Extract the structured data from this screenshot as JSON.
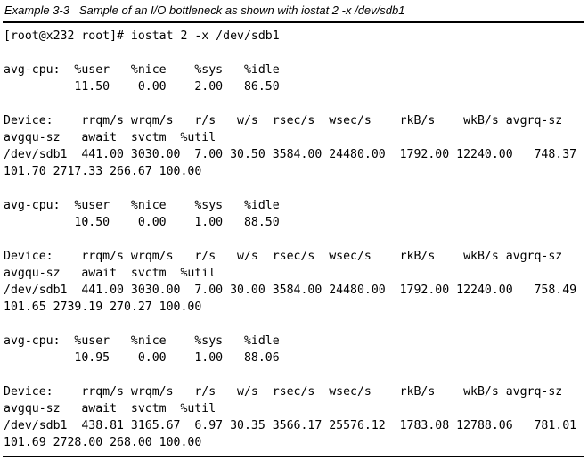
{
  "caption": "Example 3-3   Sample of an I/O bottleneck as shown with iostat 2 -x /dev/sdb1",
  "terminal": {
    "lines": [
      "[root@x232 root]# iostat 2 -x /dev/sdb1",
      "",
      "avg-cpu:  %user   %nice    %sys   %idle",
      "          11.50    0.00    2.00   86.50",
      "",
      "Device:    rrqm/s wrqm/s   r/s   w/s  rsec/s  wsec/s    rkB/s    wkB/s avgrq-sz",
      "avgqu-sz   await  svctm  %util",
      "/dev/sdb1  441.00 3030.00  7.00 30.50 3584.00 24480.00  1792.00 12240.00   748.37",
      "101.70 2717.33 266.67 100.00",
      "",
      "avg-cpu:  %user   %nice    %sys   %idle",
      "          10.50    0.00    1.00   88.50",
      "",
      "Device:    rrqm/s wrqm/s   r/s   w/s  rsec/s  wsec/s    rkB/s    wkB/s avgrq-sz",
      "avgqu-sz   await  svctm  %util",
      "/dev/sdb1  441.00 3030.00  7.00 30.00 3584.00 24480.00  1792.00 12240.00   758.49",
      "101.65 2739.19 270.27 100.00",
      "",
      "avg-cpu:  %user   %nice    %sys   %idle",
      "          10.95    0.00    1.00   88.06",
      "",
      "Device:    rrqm/s wrqm/s   r/s   w/s  rsec/s  wsec/s    rkB/s    wkB/s avgrq-sz",
      "avgqu-sz   await  svctm  %util",
      "/dev/sdb1  438.81 3165.67  6.97 30.35 3566.17 25576.12  1783.08 12788.06   781.01",
      "101.69 2728.00 268.00 100.00"
    ]
  }
}
